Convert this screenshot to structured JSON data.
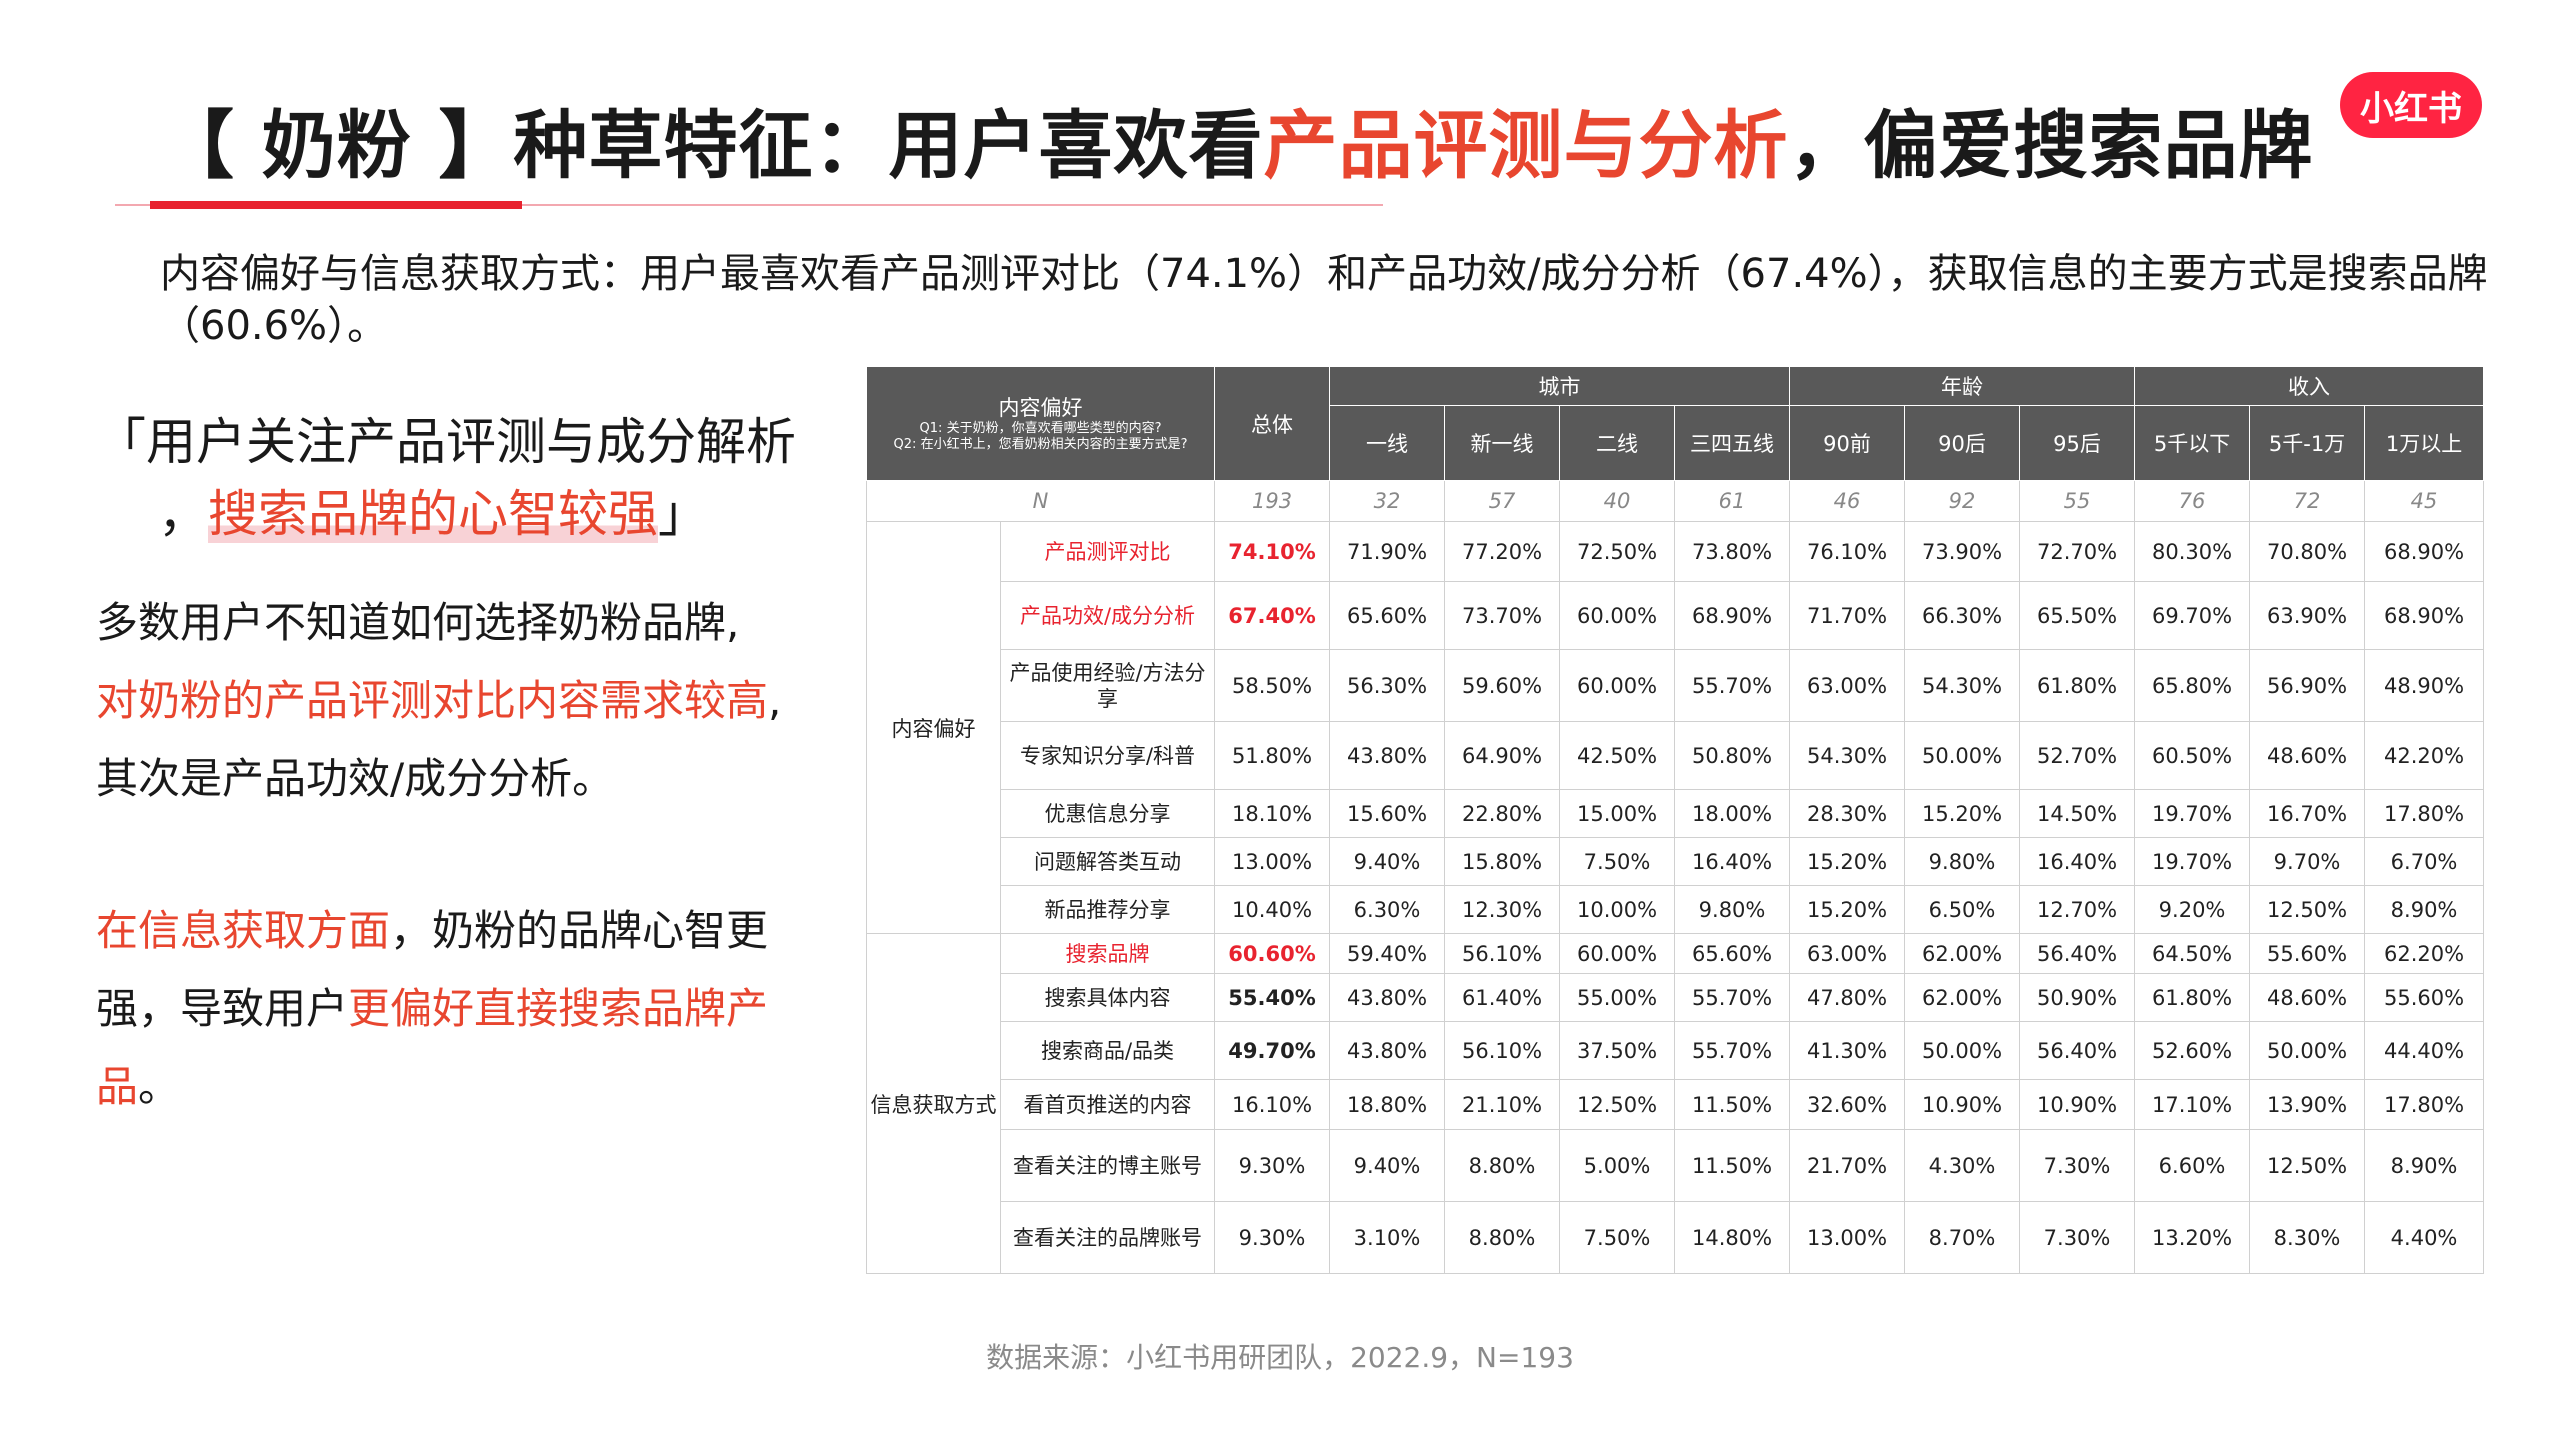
{
  "header": {
    "title_pre": "【 奶粉 】种草特征：用户喜欢看",
    "title_highlight": "产品评测与分析",
    "title_post": "，偏爱搜索品牌",
    "logo_text": "小红书"
  },
  "summary": "内容偏好与信息获取方式：用户最喜欢看产品测评对比（74.1%）和产品功效/成分分析（67.4%），获取信息的主要方式是搜索品牌（60.6%）。",
  "quote": {
    "line1": "「用户关注产品评测与成分解析",
    "line2_pre": "，",
    "line2_hl": "搜索品牌的心智较强",
    "line2_post": "」"
  },
  "left_para1": {
    "l1": "多数用户不知道如何选择奶粉品牌,",
    "l2_red": "对奶粉的产品评测对比内容需求较高",
    "l2_post": ",",
    "l3": "其次是产品功效/成分分析。"
  },
  "left_para2": {
    "l1_red": "在信息获取方面",
    "l1_post": "，奶粉的品牌心智更",
    "l2_pre": "强，导致用户",
    "l2_red": "更偏好直接搜索品牌产",
    "l3_red": "品",
    "l3_post": "。"
  },
  "table": {
    "corner_title": "内容偏好",
    "corner_q1": "Q1: 关于奶粉，你喜欢看哪些类型的内容?",
    "corner_q2": "Q2: 在小红书上，您看奶粉相关内容的主要方式是?",
    "total_label": "总体",
    "groups": [
      "城市",
      "年龄",
      "收入"
    ],
    "subcols": [
      "一线",
      "新一线",
      "二线",
      "三四五线",
      "90前",
      "90后",
      "95后",
      "5千以下",
      "5千-1万",
      "1万以上"
    ],
    "n_label": "N",
    "n_values": [
      "193",
      "32",
      "57",
      "40",
      "61",
      "46",
      "92",
      "55",
      "76",
      "72",
      "45"
    ],
    "section1": "内容偏好",
    "section2": "信息获取方式",
    "rows": [
      {
        "cat": "产品测评对比",
        "vals": [
          "74.10%",
          "71.90%",
          "77.20%",
          "72.50%",
          "73.80%",
          "76.10%",
          "73.90%",
          "72.70%",
          "80.30%",
          "70.80%",
          "68.90%"
        ]
      },
      {
        "cat": "产品功效/成分分析",
        "vals": [
          "67.40%",
          "65.60%",
          "73.70%",
          "60.00%",
          "68.90%",
          "71.70%",
          "66.30%",
          "65.50%",
          "69.70%",
          "63.90%",
          "68.90%"
        ]
      },
      {
        "cat": "产品使用经验/方法分享",
        "vals": [
          "58.50%",
          "56.30%",
          "59.60%",
          "60.00%",
          "55.70%",
          "63.00%",
          "54.30%",
          "61.80%",
          "65.80%",
          "56.90%",
          "48.90%"
        ]
      },
      {
        "cat": "专家知识分享/科普",
        "vals": [
          "51.80%",
          "43.80%",
          "64.90%",
          "42.50%",
          "50.80%",
          "54.30%",
          "50.00%",
          "52.70%",
          "60.50%",
          "48.60%",
          "42.20%"
        ]
      },
      {
        "cat": "优惠信息分享",
        "vals": [
          "18.10%",
          "15.60%",
          "22.80%",
          "15.00%",
          "18.00%",
          "28.30%",
          "15.20%",
          "14.50%",
          "19.70%",
          "16.70%",
          "17.80%"
        ]
      },
      {
        "cat": "问题解答类互动",
        "vals": [
          "13.00%",
          "9.40%",
          "15.80%",
          "7.50%",
          "16.40%",
          "15.20%",
          "9.80%",
          "16.40%",
          "19.70%",
          "9.70%",
          "6.70%"
        ]
      },
      {
        "cat": "新品推荐分享",
        "vals": [
          "10.40%",
          "6.30%",
          "12.30%",
          "10.00%",
          "9.80%",
          "15.20%",
          "6.50%",
          "12.70%",
          "9.20%",
          "12.50%",
          "8.90%"
        ]
      },
      {
        "cat": "搜索品牌",
        "vals": [
          "60.60%",
          "59.40%",
          "56.10%",
          "60.00%",
          "65.60%",
          "63.00%",
          "62.00%",
          "56.40%",
          "64.50%",
          "55.60%",
          "62.20%"
        ]
      },
      {
        "cat": "搜索具体内容",
        "vals": [
          "55.40%",
          "43.80%",
          "61.40%",
          "55.00%",
          "55.70%",
          "47.80%",
          "62.00%",
          "50.90%",
          "61.80%",
          "48.60%",
          "55.60%"
        ]
      },
      {
        "cat": "搜索商品/品类",
        "vals": [
          "49.70%",
          "43.80%",
          "56.10%",
          "37.50%",
          "55.70%",
          "41.30%",
          "50.00%",
          "56.40%",
          "52.60%",
          "50.00%",
          "44.40%"
        ]
      },
      {
        "cat": "看首页推送的内容",
        "vals": [
          "16.10%",
          "18.80%",
          "21.10%",
          "12.50%",
          "11.50%",
          "32.60%",
          "10.90%",
          "10.90%",
          "17.10%",
          "13.90%",
          "17.80%"
        ]
      },
      {
        "cat": "查看关注的博主账号",
        "vals": [
          "9.30%",
          "9.40%",
          "8.80%",
          "5.00%",
          "11.50%",
          "21.70%",
          "4.30%",
          "7.30%",
          "6.60%",
          "12.50%",
          "8.90%"
        ]
      },
      {
        "cat": "查看关注的品牌账号",
        "vals": [
          "9.30%",
          "3.10%",
          "8.80%",
          "7.50%",
          "14.80%",
          "13.00%",
          "8.70%",
          "7.30%",
          "13.20%",
          "8.30%",
          "4.40%"
        ]
      }
    ],
    "highlight_color": "#e8232f"
  },
  "source": "数据来源：小红书用研团队，2022.9，N=193"
}
